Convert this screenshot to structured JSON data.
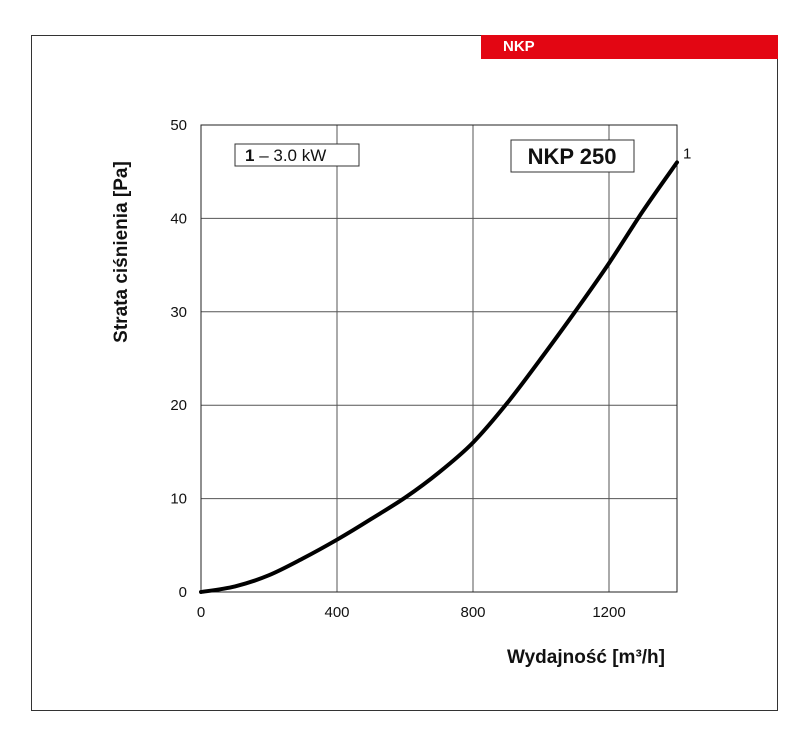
{
  "header": {
    "tab_label": "NKP"
  },
  "chart_data": {
    "type": "line",
    "title": "NKP 250",
    "xlabel": "Wydajność [m³/h]",
    "ylabel": "Strata ciśnienia [Pa]",
    "xlim": [
      0,
      1400
    ],
    "ylim": [
      0,
      50
    ],
    "xticks": [
      0,
      400,
      800,
      1200
    ],
    "yticks": [
      0,
      10,
      20,
      30,
      40,
      50
    ],
    "grid": true,
    "legend": {
      "number": "1",
      "text": " – 3.0 kW"
    },
    "series": [
      {
        "end_label": "1",
        "x": [
          0,
          100,
          200,
          300,
          400,
          500,
          600,
          700,
          800,
          900,
          1000,
          1100,
          1200,
          1300,
          1400
        ],
        "y": [
          0,
          0.6,
          1.8,
          3.6,
          5.6,
          7.8,
          10.1,
          12.8,
          16.0,
          20.2,
          25.0,
          30.0,
          35.2,
          40.8,
          46.0
        ]
      }
    ]
  }
}
